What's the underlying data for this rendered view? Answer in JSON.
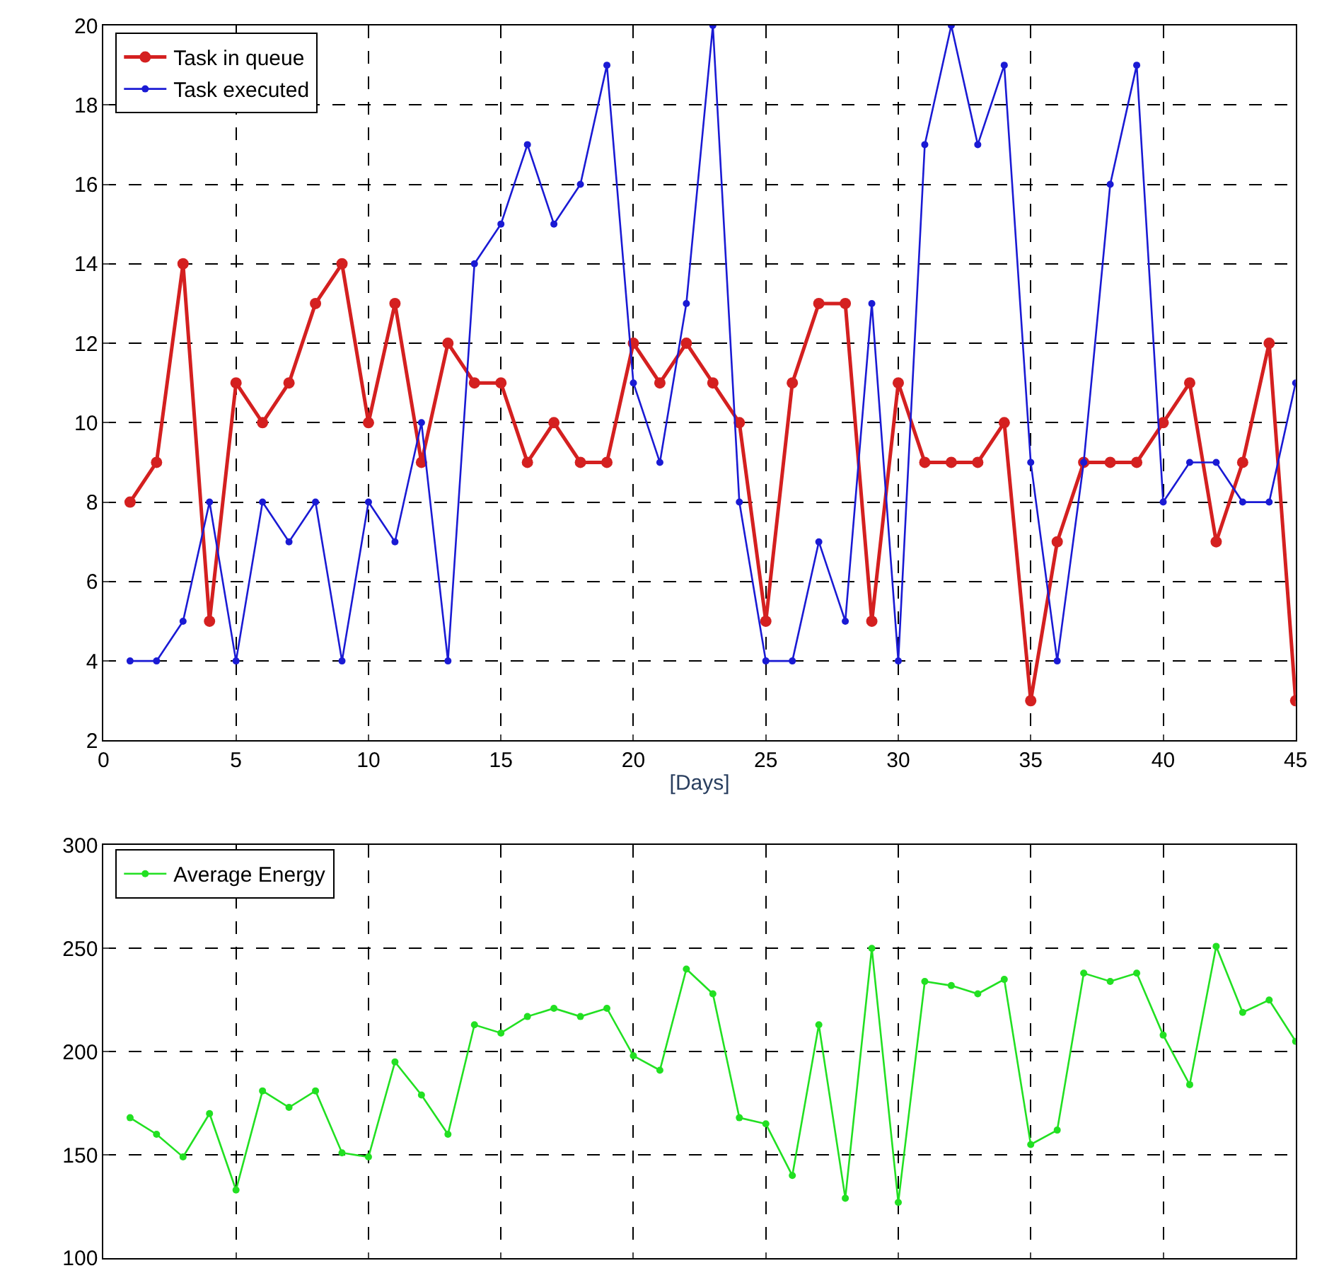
{
  "chart_data": [
    {
      "type": "line",
      "xlabel": "[Days]",
      "x": [
        1,
        2,
        3,
        4,
        5,
        6,
        7,
        8,
        9,
        10,
        11,
        12,
        13,
        14,
        15,
        16,
        17,
        18,
        19,
        20,
        21,
        22,
        23,
        24,
        25,
        26,
        27,
        28,
        29,
        30,
        31,
        32,
        33,
        34,
        35,
        36,
        37,
        38,
        39,
        40,
        41,
        42,
        43,
        44,
        45
      ],
      "series": [
        {
          "name": "Task in queue",
          "color": "#d42020",
          "values": [
            8,
            9,
            14,
            5,
            11,
            10,
            11,
            13,
            14,
            10,
            13,
            9,
            12,
            11,
            11,
            9,
            10,
            9,
            9,
            12,
            11,
            12,
            11,
            10,
            5,
            11,
            13,
            13,
            5,
            11,
            9,
            9,
            9,
            10,
            3,
            7,
            9,
            9,
            9,
            10,
            11,
            7,
            9,
            12,
            3
          ]
        },
        {
          "name": "Task executed",
          "color": "#1a1ad4",
          "values": [
            4,
            4,
            5,
            8,
            4,
            8,
            7,
            8,
            4,
            8,
            7,
            10,
            4,
            14,
            15,
            17,
            15,
            16,
            19,
            11,
            9,
            13,
            20,
            8,
            4,
            4,
            7,
            5,
            13,
            4,
            17,
            20,
            17,
            19,
            9,
            4,
            9,
            16,
            19,
            8,
            9,
            9,
            8,
            8,
            11
          ]
        }
      ],
      "xlim": [
        0,
        45
      ],
      "xticks": [
        0,
        5,
        10,
        15,
        20,
        25,
        30,
        35,
        40,
        45
      ],
      "ylim": [
        2,
        20
      ],
      "yticks": [
        2,
        4,
        6,
        8,
        10,
        12,
        14,
        16,
        18,
        20
      ],
      "grid": true,
      "legend": "top left",
      "marker": "circle",
      "line_style": "solid"
    },
    {
      "type": "line",
      "x": [
        1,
        2,
        3,
        4,
        5,
        6,
        7,
        8,
        9,
        10,
        11,
        12,
        13,
        14,
        15,
        16,
        17,
        18,
        19,
        20,
        21,
        22,
        23,
        24,
        25,
        26,
        27,
        28,
        29,
        30,
        31,
        32,
        33,
        34,
        35,
        36,
        37,
        38,
        39,
        40,
        41,
        42,
        43,
        44,
        45
      ],
      "series": [
        {
          "name": "Average Energy",
          "color": "#22e022",
          "values": [
            168,
            160,
            149,
            170,
            133,
            181,
            173,
            181,
            151,
            149,
            195,
            179,
            160,
            213,
            209,
            217,
            221,
            217,
            221,
            198,
            191,
            240,
            228,
            168,
            165,
            140,
            213,
            129,
            250,
            127,
            234,
            232,
            228,
            235,
            155,
            162,
            238,
            234,
            238,
            208,
            184,
            251,
            219,
            225,
            205
          ]
        }
      ],
      "xlim": [
        0,
        45
      ],
      "xticks": [
        {
          "value": 0,
          "label": null
        },
        {
          "value": 5,
          "label": null
        },
        {
          "value": 10,
          "label": null
        },
        {
          "value": 15,
          "label": null
        },
        {
          "value": 20,
          "label": null
        },
        {
          "value": 25,
          "label": null
        },
        {
          "value": 30,
          "label": null
        },
        {
          "value": 35,
          "label": null
        },
        {
          "value": 40,
          "label": null
        },
        {
          "value": 45,
          "label": null
        }
      ],
      "ylim": [
        100,
        300
      ],
      "yticks": [
        100,
        150,
        200,
        250,
        300
      ],
      "grid": true,
      "legend": "top left",
      "marker": "circle",
      "line_style": "solid",
      "tick_labels": "y"
    }
  ]
}
